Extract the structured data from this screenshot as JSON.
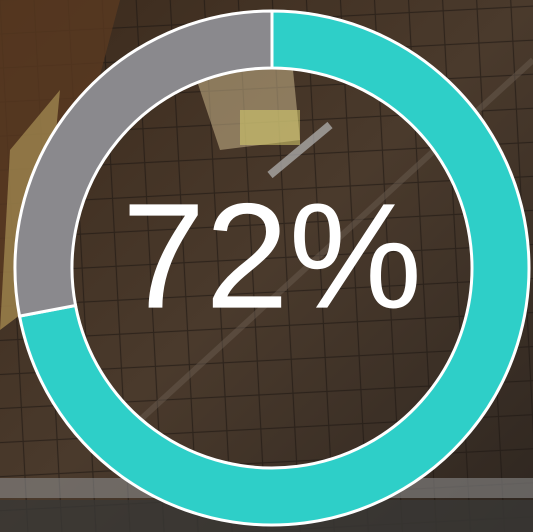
{
  "chart_data": {
    "type": "donut",
    "values": [
      72,
      28
    ],
    "value_labels": [
      "72%",
      null
    ],
    "colors": [
      "#2ecfc8",
      "#8a898d"
    ]
  }
}
